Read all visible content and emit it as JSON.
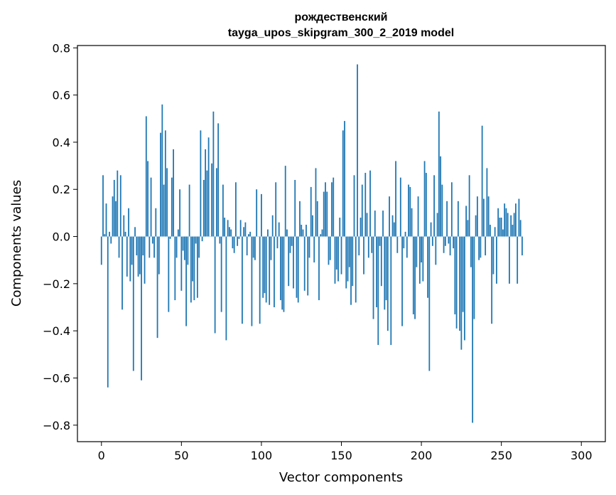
{
  "chart_data": {
    "type": "bar",
    "title_line1": "рождественский",
    "title_line2": "tayga_upos_skipgram_300_2_2019 model",
    "xlabel": "Vector components",
    "ylabel": "Components values",
    "xlim": [
      -15,
      315
    ],
    "ylim": [
      -0.87,
      0.81
    ],
    "xticks": [
      0,
      50,
      100,
      150,
      200,
      250,
      300
    ],
    "xtick_labels": [
      "0",
      "50",
      "100",
      "150",
      "200",
      "250",
      "300"
    ],
    "yticks": [
      -0.8,
      -0.6,
      -0.4,
      -0.2,
      0.0,
      0.2,
      0.4,
      0.6,
      0.8
    ],
    "ytick_labels": [
      "−0.8",
      "−0.6",
      "−0.4",
      "−0.2",
      "0.0",
      "0.2",
      "0.4",
      "0.6",
      "0.8"
    ],
    "bar_color": "#1f77b4",
    "values": [
      -0.12,
      0.26,
      0.01,
      0.14,
      -0.64,
      0.02,
      -0.03,
      0.17,
      0.24,
      0.15,
      0.28,
      -0.09,
      0.26,
      -0.31,
      0.09,
      0.02,
      -0.17,
      0.12,
      -0.19,
      -0.12,
      -0.57,
      0.04,
      -0.08,
      -0.17,
      -0.16,
      -0.61,
      -0.08,
      -0.2,
      0.51,
      0.32,
      -0.09,
      0.25,
      -0.03,
      -0.09,
      0.12,
      -0.43,
      -0.16,
      0.44,
      0.56,
      0.22,
      0.45,
      0.29,
      -0.32,
      -0.01,
      0.25,
      0.37,
      -0.27,
      -0.09,
      0.03,
      0.2,
      -0.23,
      -0.06,
      -0.1,
      -0.38,
      -0.12,
      0.22,
      -0.28,
      -0.19,
      -0.27,
      -0.03,
      -0.26,
      -0.09,
      0.45,
      -0.02,
      0.24,
      0.37,
      0.28,
      0.42,
      0.0,
      0.31,
      0.53,
      -0.41,
      0.29,
      0.48,
      -0.03,
      -0.32,
      0.22,
      0.08,
      -0.44,
      0.07,
      0.04,
      0.03,
      -0.05,
      -0.07,
      0.23,
      -0.04,
      -0.01,
      0.07,
      -0.37,
      0.04,
      0.06,
      -0.08,
      0.01,
      0.02,
      -0.38,
      -0.09,
      -0.1,
      0.2,
      0.0,
      -0.37,
      0.18,
      -0.26,
      -0.24,
      -0.28,
      0.03,
      -0.29,
      -0.1,
      0.09,
      -0.3,
      0.23,
      -0.05,
      0.06,
      -0.27,
      -0.31,
      -0.32,
      0.3,
      0.03,
      -0.21,
      -0.07,
      -0.04,
      -0.22,
      0.24,
      -0.26,
      -0.28,
      0.15,
      0.05,
      0.03,
      -0.23,
      0.05,
      -0.25,
      -0.09,
      0.21,
      0.09,
      -0.11,
      0.29,
      0.15,
      -0.27,
      0.01,
      0.03,
      0.19,
      0.23,
      0.19,
      -0.12,
      -0.1,
      0.23,
      0.25,
      -0.2,
      -0.14,
      -0.19,
      0.08,
      -0.16,
      0.45,
      0.49,
      -0.22,
      -0.19,
      -0.13,
      -0.29,
      -0.21,
      0.26,
      -0.28,
      0.73,
      -0.08,
      0.08,
      0.22,
      -0.16,
      0.27,
      0.1,
      -0.09,
      0.28,
      -0.07,
      -0.35,
      0.11,
      -0.3,
      -0.46,
      -0.04,
      -0.21,
      0.11,
      -0.31,
      -0.27,
      -0.4,
      0.17,
      -0.46,
      0.09,
      0.06,
      0.32,
      -0.07,
      0.0,
      0.25,
      -0.38,
      -0.05,
      0.02,
      -0.09,
      0.22,
      0.21,
      0.12,
      -0.33,
      -0.35,
      -0.13,
      0.17,
      -0.2,
      -0.11,
      -0.19,
      0.32,
      0.27,
      -0.26,
      -0.57,
      0.06,
      -0.04,
      0.26,
      -0.12,
      0.1,
      0.53,
      0.34,
      0.22,
      -0.07,
      -0.04,
      0.15,
      -0.03,
      -0.08,
      0.23,
      -0.05,
      -0.33,
      -0.39,
      0.15,
      -0.4,
      -0.48,
      -0.32,
      -0.44,
      0.13,
      0.07,
      0.26,
      -0.13,
      -0.79,
      -0.35,
      0.09,
      0.17,
      -0.1,
      -0.09,
      0.47,
      0.16,
      -0.08,
      0.29,
      0.17,
      0.05,
      -0.37,
      -0.16,
      0.04,
      -0.2,
      0.12,
      0.08,
      0.08,
      0.03,
      0.14,
      0.12,
      0.1,
      -0.2,
      0.09,
      0.05,
      0.1,
      0.14,
      -0.2,
      0.16,
      0.07,
      -0.08
    ]
  }
}
